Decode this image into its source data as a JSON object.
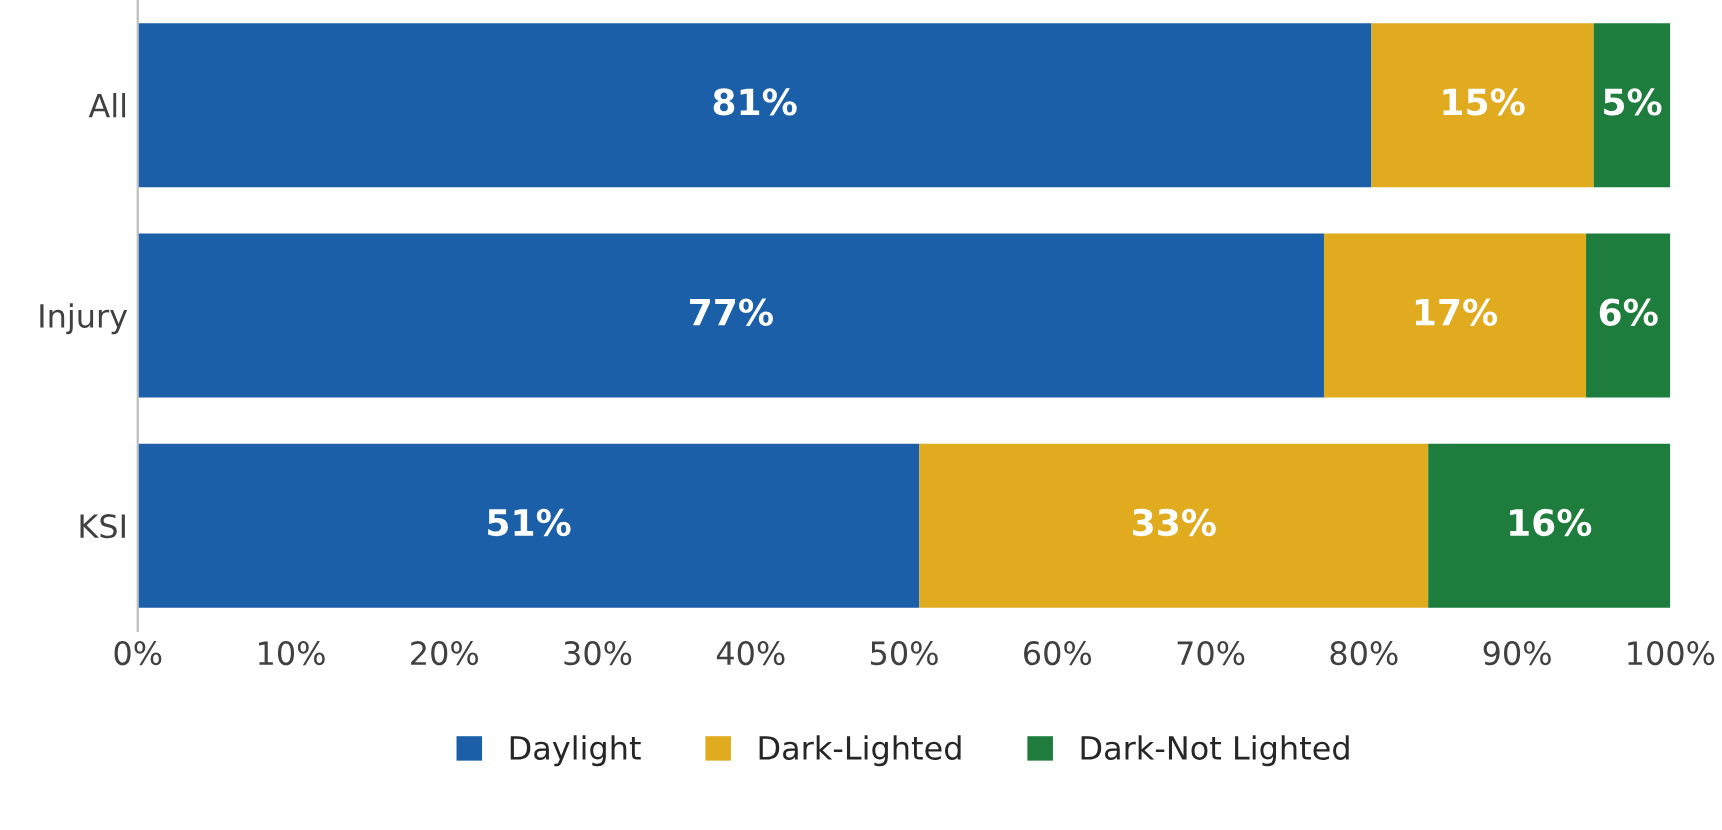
{
  "chart_data": {
    "type": "bar",
    "orientation": "horizontal",
    "stacked": true,
    "categories": [
      "All",
      "Injury",
      "KSI"
    ],
    "series": [
      {
        "name": "Daylight",
        "color": "#1a5fa8",
        "values": [
          80.5,
          77.4,
          51.0
        ],
        "value_labels": [
          "81%",
          "77%",
          "51%"
        ]
      },
      {
        "name": "Dark-Lighted",
        "color": "#e0ab1f",
        "values": [
          14.5,
          17.1,
          33.2
        ],
        "value_labels": [
          "15%",
          "17%",
          "33%"
        ]
      },
      {
        "name": "Dark-Not Lighted",
        "color": "#1e7d3c",
        "values": [
          5.0,
          5.5,
          15.8
        ],
        "value_labels": [
          "5%",
          "6%",
          "16%"
        ]
      }
    ],
    "xlim": [
      0,
      100
    ],
    "xticks": [
      {
        "value": 0,
        "label": "0%"
      },
      {
        "value": 10,
        "label": "10%"
      },
      {
        "value": 20,
        "label": "20%"
      },
      {
        "value": 30,
        "label": "30%"
      },
      {
        "value": 40,
        "label": "40%"
      },
      {
        "value": 50,
        "label": "50%"
      },
      {
        "value": 60,
        "label": "60%"
      },
      {
        "value": 70,
        "label": "70%"
      },
      {
        "value": 80,
        "label": "80%"
      },
      {
        "value": 90,
        "label": "90%"
      },
      {
        "value": 100,
        "label": "100%"
      }
    ],
    "legend": "bottom"
  }
}
